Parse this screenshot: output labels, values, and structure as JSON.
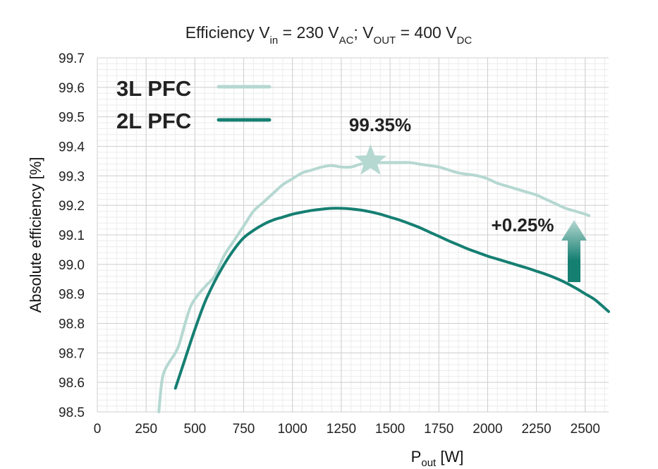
{
  "chart_data": {
    "type": "line",
    "title": {
      "prefix": "Efficiency V",
      "vin_sub": "in",
      "mid1": " = 230 V",
      "ac_sub": "AC",
      "mid2": "; V",
      "out_sub": "OUT",
      "mid3": " = 400 V",
      "dc_sub": "DC"
    },
    "xlabel": {
      "main": "P",
      "sub": "out",
      "unit": " [W]"
    },
    "ylabel": "Absolute efficiency [%]",
    "xlim": [
      0,
      2620
    ],
    "ylim": [
      98.5,
      99.7
    ],
    "xticks": [
      "0",
      "250",
      "500",
      "750",
      "1000",
      "1250",
      "1500",
      "1750",
      "2000",
      "2250",
      "2500"
    ],
    "yticks": [
      "98.5",
      "98.6",
      "98.7",
      "98.8",
      "98.9",
      "99.0",
      "99.1",
      "99.2",
      "99.3",
      "99.4",
      "99.5",
      "99.6",
      "99.7"
    ],
    "grid": true,
    "legend_position": "top-left",
    "series": [
      {
        "name": "3L PFC",
        "color": "#b5d8d1",
        "x": [
          315,
          330,
          345,
          370,
          400,
          420,
          450,
          480,
          520,
          560,
          600,
          650,
          700,
          750,
          800,
          850,
          900,
          950,
          1000,
          1050,
          1100,
          1150,
          1200,
          1250,
          1300,
          1350,
          1400,
          1450,
          1500,
          1550,
          1600,
          1650,
          1700,
          1750,
          1800,
          1850,
          1900,
          1950,
          2000,
          2050,
          2100,
          2150,
          2200,
          2250,
          2300,
          2350,
          2400,
          2450,
          2500,
          2520
        ],
        "y": [
          98.5,
          98.6,
          98.64,
          98.67,
          98.7,
          98.73,
          98.8,
          98.86,
          98.9,
          98.93,
          98.96,
          99.03,
          99.08,
          99.13,
          99.18,
          99.21,
          99.24,
          99.27,
          99.29,
          99.31,
          99.32,
          99.33,
          99.335,
          99.33,
          99.33,
          99.34,
          99.345,
          99.345,
          99.345,
          99.345,
          99.345,
          99.34,
          99.335,
          99.33,
          99.32,
          99.31,
          99.305,
          99.3,
          99.29,
          99.275,
          99.265,
          99.255,
          99.245,
          99.235,
          99.22,
          99.205,
          99.19,
          99.18,
          99.17,
          99.165
        ]
      },
      {
        "name": "2L PFC",
        "color": "#157f72",
        "x": [
          400,
          450,
          500,
          550,
          600,
          650,
          700,
          750,
          800,
          850,
          900,
          950,
          1000,
          1050,
          1100,
          1150,
          1200,
          1250,
          1300,
          1350,
          1400,
          1450,
          1500,
          1550,
          1600,
          1650,
          1700,
          1750,
          1800,
          1850,
          1900,
          1950,
          2000,
          2050,
          2100,
          2150,
          2200,
          2250,
          2300,
          2350,
          2400,
          2450,
          2500,
          2550,
          2620
        ],
        "y": [
          98.58,
          98.68,
          98.78,
          98.87,
          98.94,
          99.0,
          99.05,
          99.09,
          99.115,
          99.135,
          99.15,
          99.16,
          99.17,
          99.177,
          99.183,
          99.187,
          99.19,
          99.19,
          99.188,
          99.184,
          99.178,
          99.17,
          99.16,
          99.15,
          99.138,
          99.125,
          99.11,
          99.095,
          99.08,
          99.066,
          99.052,
          99.04,
          99.028,
          99.018,
          99.008,
          98.998,
          98.988,
          98.977,
          98.966,
          98.953,
          98.938,
          98.92,
          98.9,
          98.88,
          98.84
        ]
      }
    ],
    "annotations": [
      {
        "text": "99.35%",
        "x": 1400,
        "y": 99.35,
        "marker": "star"
      },
      {
        "text": "+0.25%",
        "x": 2450,
        "y": 99.04,
        "marker": "arrow"
      }
    ]
  }
}
